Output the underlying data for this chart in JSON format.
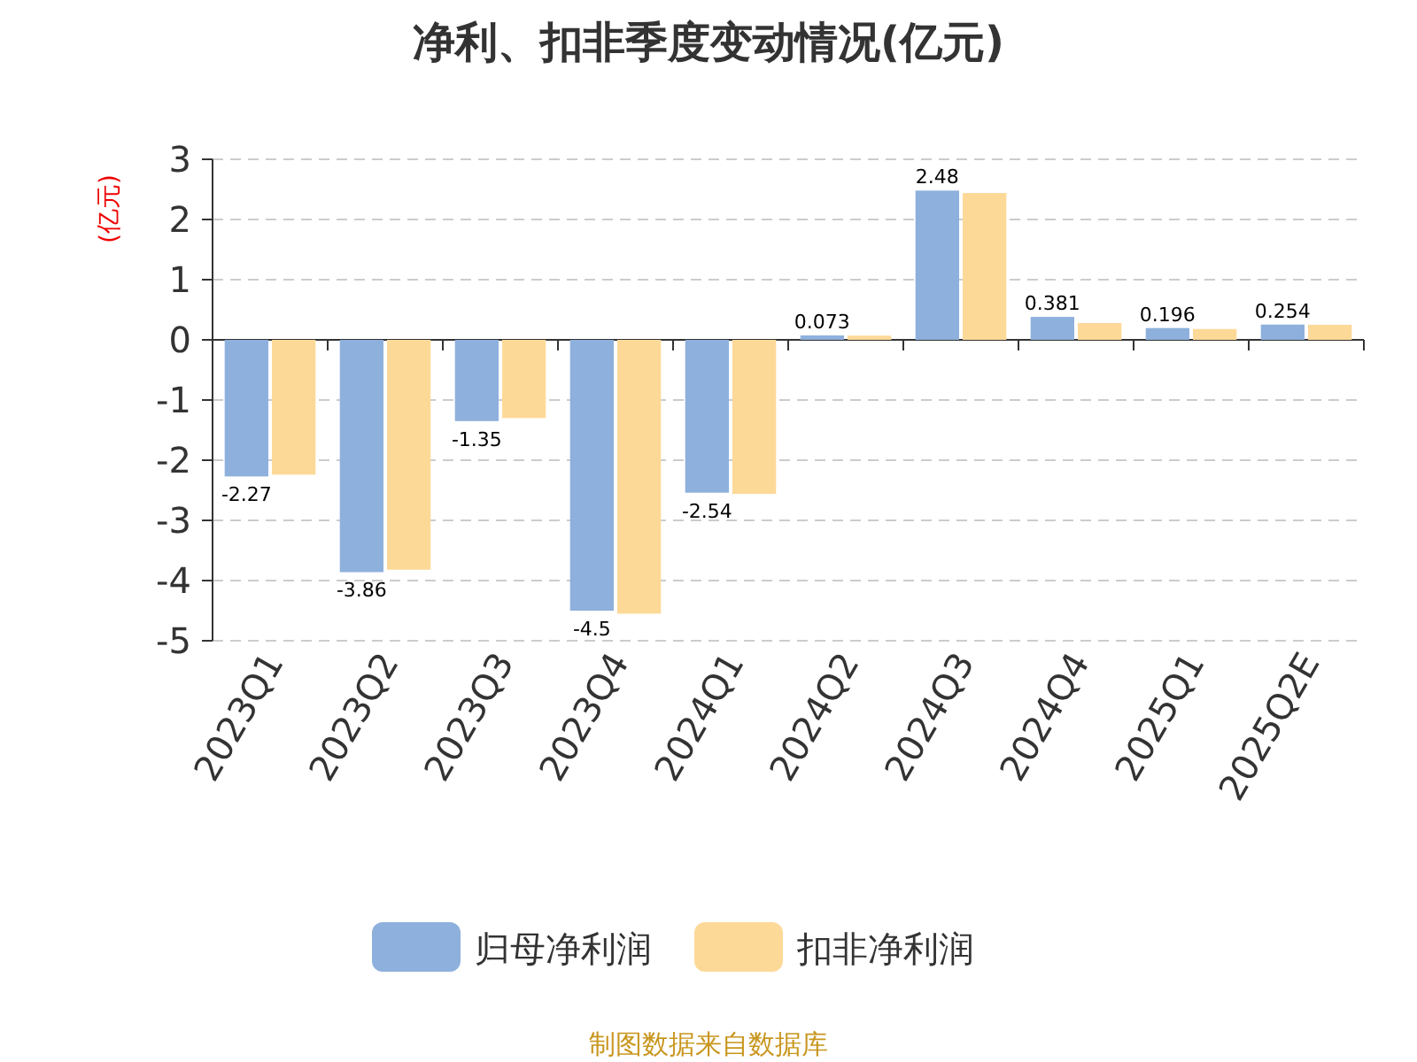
{
  "chart_data": {
    "type": "bar",
    "title": "净利、扣非季度变动情况(亿元)",
    "ylabel": "(亿元)",
    "categories": [
      "2023Q1",
      "2023Q2",
      "2023Q3",
      "2023Q4",
      "2024Q1",
      "2024Q2",
      "2024Q3",
      "2024Q4",
      "2025Q1",
      "2025Q2E"
    ],
    "series": [
      {
        "name": "归母净利润",
        "color": "#8eb0dc",
        "values": [
          -2.27,
          -3.86,
          -1.35,
          -4.5,
          -2.54,
          0.073,
          2.48,
          0.381,
          0.196,
          0.254
        ],
        "value_labels": [
          "-2.27",
          "-3.86",
          "-1.35",
          "-4.5",
          "-2.54",
          "0.073",
          "2.48",
          "0.381",
          "0.196",
          "0.254"
        ]
      },
      {
        "name": "扣非净利润",
        "color": "#fdd998",
        "values": [
          -2.24,
          -3.82,
          -1.3,
          -4.55,
          -2.56,
          0.07,
          2.44,
          0.28,
          0.18,
          0.25
        ]
      }
    ],
    "ylim": [
      -5,
      3
    ],
    "yticks": [
      -5,
      -4,
      -3,
      -2,
      -1,
      0,
      1,
      2,
      3
    ],
    "grid": "y",
    "legend": "bottom",
    "annotations": [
      "制图数据来自数据库"
    ]
  }
}
